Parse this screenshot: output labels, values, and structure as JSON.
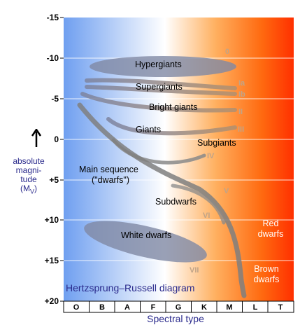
{
  "title": "Hertzsprung–Russell diagram",
  "x_axis": {
    "label": "Spectral type",
    "classes": [
      "O",
      "B",
      "A",
      "F",
      "G",
      "K",
      "M",
      "L",
      "T"
    ]
  },
  "y_axis": {
    "label_lines": [
      "absolute",
      "magni-",
      "tude"
    ],
    "label_symbol": "(M",
    "label_sub": "V",
    "label_close": ")",
    "ticks": [
      "-15",
      "-10",
      "-5",
      "0",
      "+5",
      "+10",
      "+15",
      "+20"
    ],
    "range": [
      -15,
      20
    ]
  },
  "regions": {
    "hypergiants": "Hypergiants",
    "supergiants": "Supergiants",
    "bright_giants": "Bright giants",
    "giants": "Giants",
    "subgiants": "Subgiants",
    "main_sequence_line1": "Main sequence",
    "main_sequence_line2": "(\"dwarfs\")",
    "subdwarfs": "Subdwarfs",
    "white_dwarfs": "White dwarfs",
    "red_dwarfs_line1": "Red",
    "red_dwarfs_line2": "dwarfs",
    "brown_dwarfs_line1": "Brown",
    "brown_dwarfs_line2": "dwarfs"
  },
  "luminosity_classes": {
    "c0": "0",
    "cIa": "Ia",
    "cIb": "Ib",
    "cII": "II",
    "cIII": "III",
    "cIV": "IV",
    "cV": "V",
    "cVI": "VI",
    "cVII": "VII"
  },
  "colors": {
    "band_colors": [
      "#6f9ff0",
      "#ffffff",
      "#ffb060",
      "#ff6a10",
      "#ff3000"
    ],
    "axis_label_color": "#2a2a8c",
    "sequence_color": "#7f7f7f",
    "class_label_color": "#c0a488"
  }
}
